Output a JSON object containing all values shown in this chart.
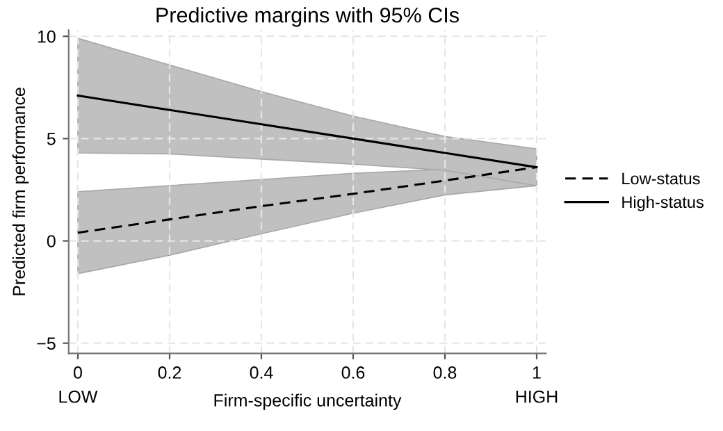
{
  "chart_data": {
    "type": "line",
    "title": "Predictive margins with 95% CIs",
    "xlabel": "Firm-specific uncertainty",
    "ylabel": "Predicted firm performance",
    "x": [
      0,
      0.2,
      0.4,
      0.6,
      0.8,
      1
    ],
    "series": [
      {
        "name": "Low-status",
        "color": "#000000",
        "line_style": "dashed",
        "values": [
          0.4,
          1.05,
          1.7,
          2.3,
          2.95,
          3.6
        ],
        "lower": [
          -1.6,
          -0.7,
          0.35,
          1.35,
          2.25,
          2.7
        ],
        "upper": [
          2.4,
          2.7,
          3.0,
          3.3,
          3.5,
          4.5
        ]
      },
      {
        "name": "High-status",
        "color": "#000000",
        "line_style": "solid",
        "values": [
          7.1,
          6.4,
          5.7,
          5.0,
          4.3,
          3.6
        ],
        "lower": [
          4.3,
          4.25,
          4.0,
          3.75,
          3.45,
          2.7
        ],
        "upper": [
          9.9,
          8.6,
          7.3,
          6.1,
          5.1,
          4.5
        ]
      }
    ],
    "xlim": [
      -0.02,
      1.02
    ],
    "ylim": [
      -5.5,
      10.3
    ],
    "xticks": [
      0,
      0.2,
      0.4,
      0.6,
      0.8,
      1
    ],
    "yticks": [
      {
        "value": -5,
        "label": "−5"
      },
      0,
      5,
      10
    ],
    "annotations": [
      "LOW",
      "HIGH"
    ],
    "grid": true,
    "legend": "right",
    "marker": "none"
  }
}
